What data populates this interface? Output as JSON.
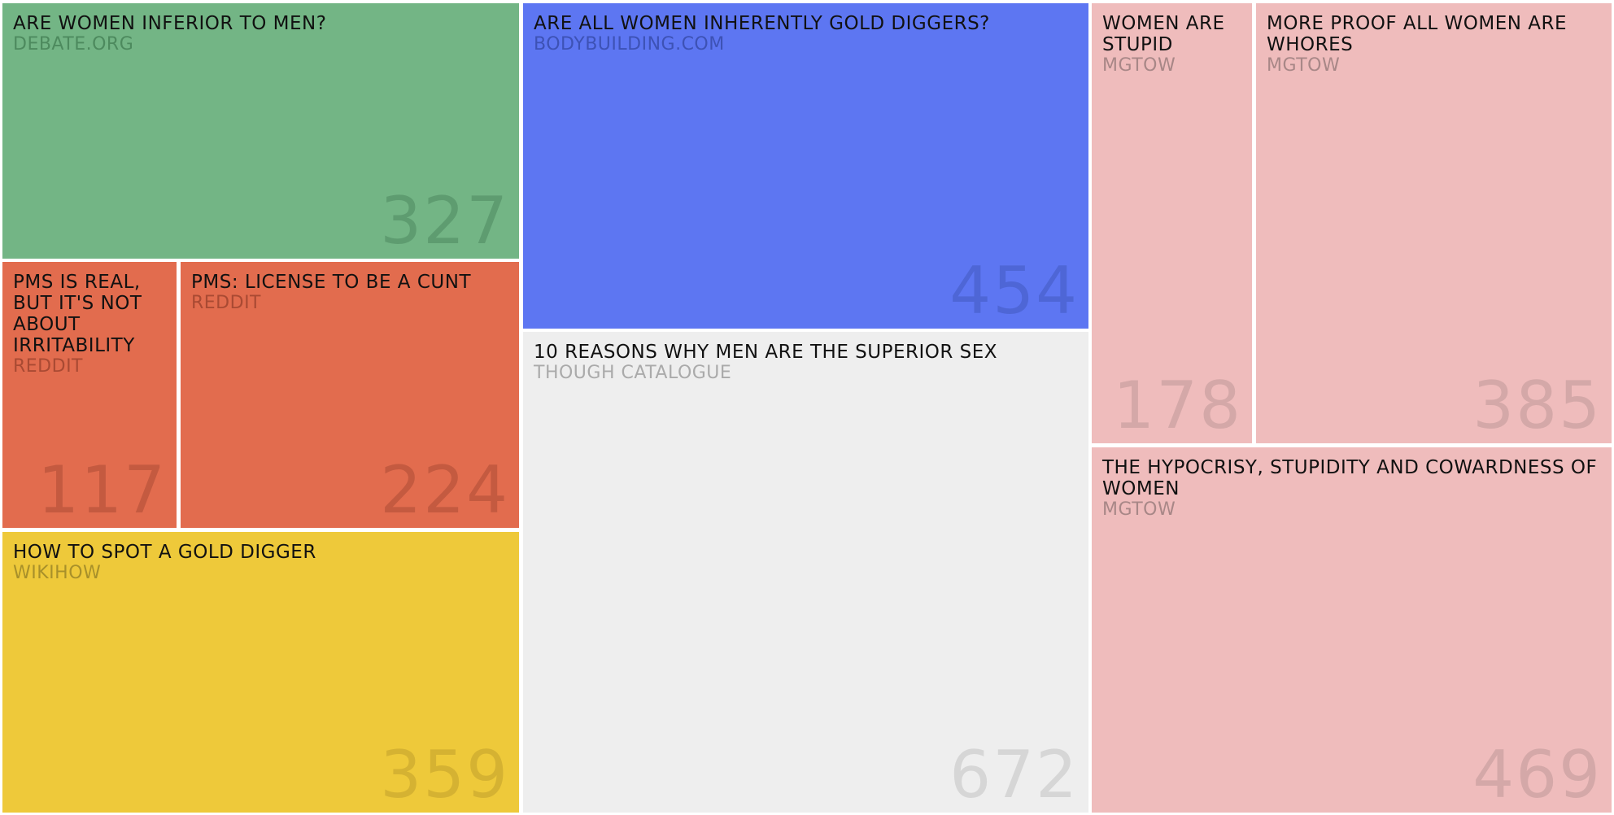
{
  "chart_data": {
    "type": "treemap",
    "items": [
      {
        "title": "ARE WOMEN INFERIOR TO MEN?",
        "source": "DEBATE.ORG",
        "value": 327,
        "color": "#73b585",
        "source_color": "#4d8a5e",
        "value_color": "#5e9c70"
      },
      {
        "title": "PMS IS REAL, BUT IT'S NOT ABOUT IRRITABILITY",
        "source": "REDDIT",
        "value": 117,
        "color": "#e26c4e",
        "source_color": "#a94a33",
        "value_color": "#c45a40"
      },
      {
        "title": "PMS: LICENSE TO BE A CUNT",
        "source": "REDDIT",
        "value": 224,
        "color": "#e26c4e",
        "source_color": "#a94a33",
        "value_color": "#c45a40"
      },
      {
        "title": "HOW TO SPOT A GOLD DIGGER",
        "source": "WIKIHOW",
        "value": 359,
        "color": "#eec93a",
        "source_color": "#a8902a",
        "value_color": "#d5b232"
      },
      {
        "title": "ARE ALL WOMEN INHERENTLY GOLD DIGGERS?",
        "source": "BODYBUILDING.COM",
        "value": 454,
        "color": "#5d76f2",
        "source_color": "#3d52b5",
        "value_color": "#4e66d6"
      },
      {
        "title": "10 REASONS WHY MEN ARE THE SUPERIOR SEX",
        "source": "THOUGH CATALOGUE",
        "value": 672,
        "color": "#eeeeee",
        "source_color": "#aaaaaa",
        "value_color": "#d6d6d6"
      },
      {
        "title": "WOMEN ARE STUPID",
        "source": "MGTOW",
        "value": 178,
        "color": "#efbcbc",
        "source_color": "#a88787",
        "value_color": "#d4a8a8"
      },
      {
        "title": "MORE PROOF ALL WOMEN ARE WHORES",
        "source": "MGTOW",
        "value": 385,
        "color": "#efbcbc",
        "source_color": "#a88787",
        "value_color": "#d4a8a8"
      },
      {
        "title": "THE HYPOCRISY, STUPIDITY AND COWARDNESS OF WOMEN",
        "source": "MGTOW",
        "value": 469,
        "color": "#efbcbc",
        "source_color": "#a88787",
        "value_color": "#d4a8a8"
      }
    ]
  }
}
